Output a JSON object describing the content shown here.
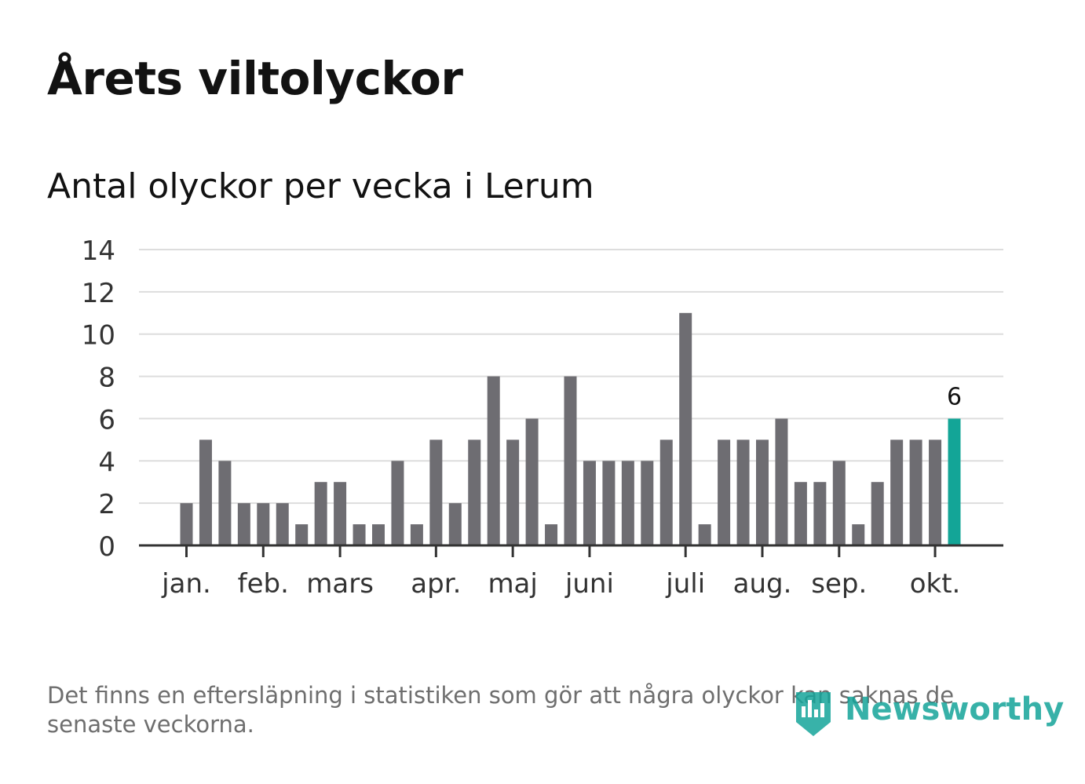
{
  "header": {
    "title": "Årets viltolyckor",
    "subtitle": "Antal olyckor per vecka i Lerum"
  },
  "footer": {
    "note": "Det finns en eftersläpning i statistiken som gör att några olyckor kan saknas de senaste veckorna.",
    "brand": "Newsworthy",
    "brand_icon": "newsworthy-logo-icon"
  },
  "colors": {
    "bar": "#6e6d72",
    "highlight": "#13a597",
    "grid": "#dddddd",
    "axis": "#333333",
    "text": "#333333"
  },
  "chart_data": {
    "type": "bar",
    "title": "Antal olyckor per vecka i Lerum",
    "xlabel": "",
    "ylabel": "",
    "ylim": [
      0,
      14
    ],
    "yticks": [
      0,
      2,
      4,
      6,
      8,
      10,
      12,
      14
    ],
    "grid": true,
    "weeks": [
      1,
      2,
      3,
      4,
      5,
      6,
      7,
      8,
      9,
      10,
      11,
      12,
      13,
      14,
      15,
      16,
      17,
      18,
      19,
      20,
      21,
      22,
      23,
      24,
      25,
      26,
      27,
      28,
      29,
      30,
      31,
      32,
      33,
      34,
      35,
      36,
      37,
      38,
      39,
      40,
      41
    ],
    "values": [
      2,
      5,
      4,
      2,
      2,
      2,
      1,
      3,
      3,
      1,
      1,
      4,
      1,
      5,
      2,
      5,
      8,
      5,
      6,
      1,
      8,
      4,
      4,
      4,
      4,
      5,
      11,
      1,
      5,
      5,
      5,
      6,
      3,
      3,
      4,
      1,
      3,
      5,
      5,
      5,
      6
    ],
    "month_ticks": [
      {
        "label": "jan.",
        "week": 1
      },
      {
        "label": "feb.",
        "week": 5
      },
      {
        "label": "mars",
        "week": 9
      },
      {
        "label": "apr.",
        "week": 14
      },
      {
        "label": "maj",
        "week": 18
      },
      {
        "label": "juni",
        "week": 22
      },
      {
        "label": "juli",
        "week": 27
      },
      {
        "label": "aug.",
        "week": 31
      },
      {
        "label": "sep.",
        "week": 35
      },
      {
        "label": "okt.",
        "week": 40
      }
    ],
    "highlight_index": 40,
    "data_labels": [
      {
        "index": 40,
        "text": "6"
      }
    ]
  }
}
